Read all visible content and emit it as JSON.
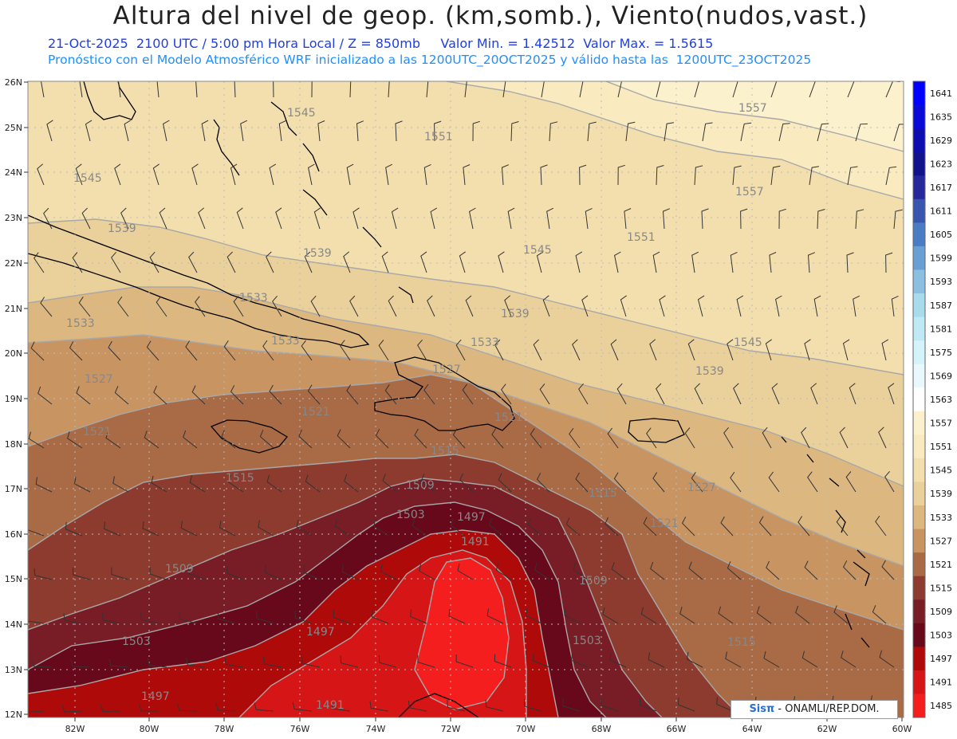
{
  "header": {
    "title": "Altura del nivel de geop. (km,somb.), Viento(nudos,vast.)",
    "line1": "21-Oct-2025  2100 UTC / 5:00 pm Hora Local / Z = 850mb     Valor Min. = 1.42512  Valor Max. = 1.5615",
    "line2": "Pronóstico con el Modelo Atmosférico WRF inicializado a las 1200UTC_20OCT2025 y válido hasta las  1200UTC_23OCT2025"
  },
  "axes": {
    "lon_labels": [
      "82W",
      "80W",
      "78W",
      "76W",
      "74W",
      "72W",
      "70W",
      "68W",
      "66W",
      "64W",
      "62W",
      "60W"
    ],
    "lat_labels": [
      "26N",
      "25N",
      "24N",
      "23N",
      "22N",
      "21N",
      "20N",
      "19N",
      "18N",
      "17N",
      "16N",
      "15N",
      "14N",
      "13N",
      "12N"
    ]
  },
  "colorbar": {
    "levels": [
      "1641",
      "1635",
      "1629",
      "1623",
      "1617",
      "1611",
      "1605",
      "1599",
      "1593",
      "1587",
      "1581",
      "1575",
      "1569",
      "1563",
      "1557",
      "1551",
      "1545",
      "1539",
      "1533",
      "1527",
      "1521",
      "1515",
      "1509",
      "1503",
      "1497",
      "1491",
      "1485"
    ],
    "colors": [
      "#0000ff",
      "#0a0ad8",
      "#0d0db0",
      "#12128c",
      "#27279c",
      "#3a55b0",
      "#4a7cc4",
      "#6a9fd4",
      "#8cbfe0",
      "#a8dbec",
      "#bfe9f5",
      "#d5f3fa",
      "#e8f8fc",
      "#ffffff",
      "#fbf1cc",
      "#f9eac0",
      "#f3dfae",
      "#ead09a",
      "#dcb880",
      "#c89462",
      "#a96a46",
      "#8c3b2e",
      "#781c26",
      "#68081b",
      "#ae0a0a",
      "#d61616",
      "#f41e1e"
    ]
  },
  "contour_labels": [
    {
      "text": "1545"
    },
    {
      "text": "1551"
    },
    {
      "text": "1557"
    },
    {
      "text": "1557"
    },
    {
      "text": "1545"
    },
    {
      "text": "1539"
    },
    {
      "text": "1539"
    },
    {
      "text": "1551"
    },
    {
      "text": "1545"
    },
    {
      "text": "1533"
    },
    {
      "text": "1533"
    },
    {
      "text": "1533"
    },
    {
      "text": "1539"
    },
    {
      "text": "1533"
    },
    {
      "text": "1545"
    },
    {
      "text": "1527"
    },
    {
      "text": "1539"
    },
    {
      "text": "1527"
    },
    {
      "text": "1521"
    },
    {
      "text": "1521"
    },
    {
      "text": "1521"
    },
    {
      "text": "1515"
    },
    {
      "text": "1515"
    },
    {
      "text": "1509"
    },
    {
      "text": "1515"
    },
    {
      "text": "1527"
    },
    {
      "text": "1503"
    },
    {
      "text": "1497"
    },
    {
      "text": "1491"
    },
    {
      "text": "1521"
    },
    {
      "text": "1509"
    },
    {
      "text": "1509"
    },
    {
      "text": "1503"
    },
    {
      "text": "1497"
    },
    {
      "text": "1503"
    },
    {
      "text": "1515"
    },
    {
      "text": "1497"
    },
    {
      "text": "1491"
    }
  ],
  "credit": {
    "brand": "Sisπ",
    "text": " - ONAMLI/REP.DOM."
  }
}
